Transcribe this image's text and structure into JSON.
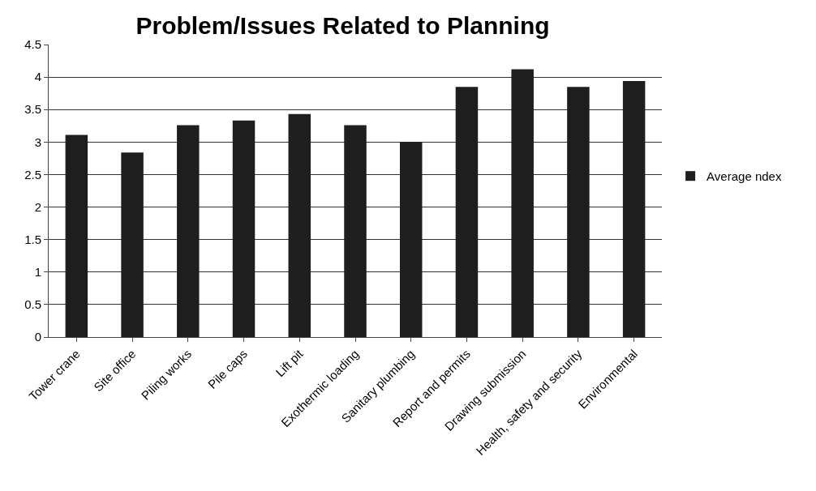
{
  "chart_data": {
    "type": "bar",
    "title": "Problem/Issues Related to Planning",
    "categories": [
      "Tower crane",
      "Site office",
      "Piling works",
      "Pile caps",
      "Lift pit",
      "Exothermic loading",
      "Sanitary plumbing",
      "Report and permits",
      "Drawing submission",
      "Health, safety and security",
      "Environmental"
    ],
    "series": [
      {
        "name": "Average ndex",
        "color": "#1e1e1e",
        "values": [
          3.11,
          2.84,
          3.26,
          3.33,
          3.43,
          3.26,
          3.0,
          3.85,
          4.12,
          3.85,
          3.94
        ]
      }
    ],
    "ylim": [
      0,
      4.5
    ],
    "yticks": [
      0,
      0.5,
      1,
      1.5,
      2,
      2.5,
      3,
      3.5,
      4,
      4.5
    ],
    "grid": "y",
    "legend": "right"
  }
}
